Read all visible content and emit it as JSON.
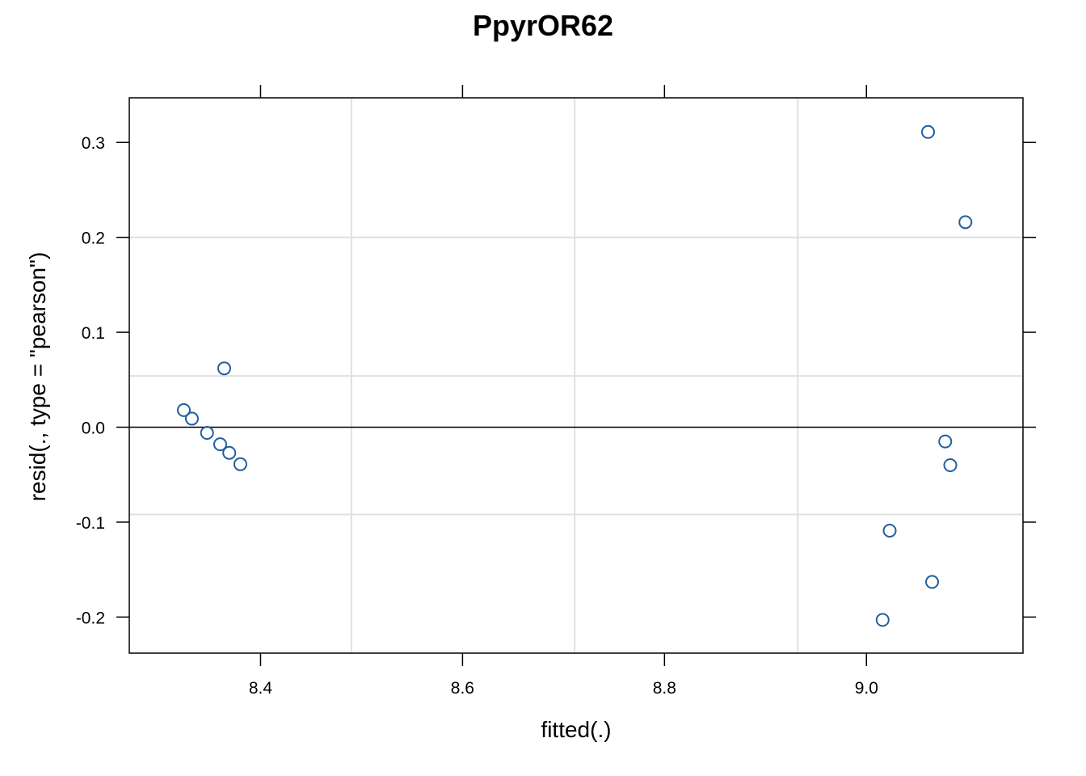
{
  "chart_data": {
    "type": "scatter",
    "title": "PpyrOR62",
    "xlabel": "fitted(.)",
    "ylabel": "resid(., type = \"pearson\")",
    "xlim": [
      8.27,
      9.155
    ],
    "ylim": [
      -0.238,
      0.347
    ],
    "x_ticks": [
      8.4,
      8.6,
      8.8,
      9.0
    ],
    "x_tick_labels": [
      "8.4",
      "8.6",
      "8.8",
      "9.0"
    ],
    "y_ticks": [
      -0.2,
      -0.1,
      0.0,
      0.1,
      0.2,
      0.3
    ],
    "y_tick_labels": [
      "-0.2",
      "-0.1",
      "0.0",
      "0.1",
      "0.2",
      "0.3"
    ],
    "grid": true,
    "grid_x": [
      8.49,
      8.711,
      8.932
    ],
    "grid_y": [
      -0.092,
      0.054,
      0.2
    ],
    "reference_line_y": 0,
    "colors": {
      "points": "#1f5f9f",
      "grid": "#e0e0e0",
      "axis": "#000000"
    },
    "points": [
      {
        "x": 8.324,
        "y": 0.018
      },
      {
        "x": 8.332,
        "y": 0.009
      },
      {
        "x": 8.347,
        "y": -0.006
      },
      {
        "x": 8.36,
        "y": -0.018
      },
      {
        "x": 8.369,
        "y": -0.027
      },
      {
        "x": 8.38,
        "y": -0.039
      },
      {
        "x": 8.364,
        "y": 0.062
      },
      {
        "x": 9.061,
        "y": 0.311
      },
      {
        "x": 9.098,
        "y": 0.216
      },
      {
        "x": 9.078,
        "y": -0.015
      },
      {
        "x": 9.083,
        "y": -0.04
      },
      {
        "x": 9.023,
        "y": -0.109
      },
      {
        "x": 9.065,
        "y": -0.163
      },
      {
        "x": 9.016,
        "y": -0.203
      }
    ]
  }
}
